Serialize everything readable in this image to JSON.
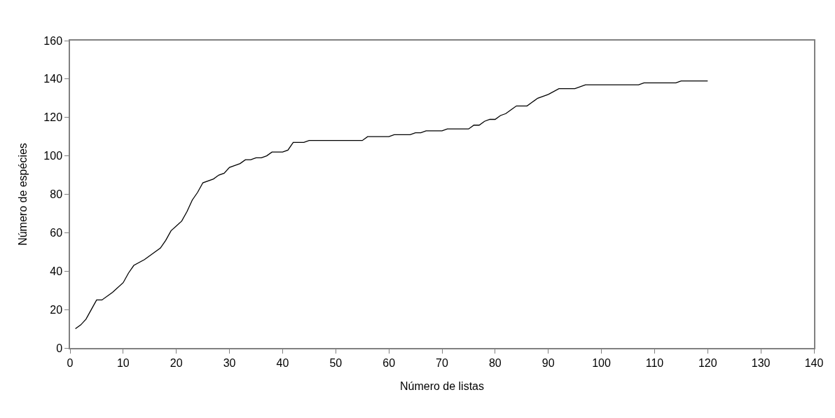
{
  "chart_data": {
    "type": "line",
    "xlabel": "Número de listas",
    "ylabel": "Número de espécies",
    "x": [
      1,
      2,
      3,
      4,
      5,
      6,
      8,
      10,
      11,
      12,
      14,
      16,
      17,
      18,
      19,
      21,
      22,
      23,
      24,
      25,
      27,
      28,
      29,
      30,
      31,
      32,
      33,
      34,
      35,
      36,
      37,
      38,
      40,
      41,
      42,
      44,
      45,
      55,
      56,
      60,
      61,
      64,
      65,
      66,
      67,
      70,
      71,
      75,
      76,
      77,
      78,
      79,
      80,
      81,
      82,
      83,
      84,
      86,
      87,
      88,
      89,
      90,
      92,
      95,
      97,
      107,
      108,
      114,
      115,
      120
    ],
    "series": [
      {
        "color": "#000000",
        "values": [
          10,
          12,
          15,
          20,
          25,
          25,
          29,
          34,
          39,
          43,
          46,
          50,
          52,
          56,
          61,
          66,
          71,
          77,
          81,
          86,
          88,
          90,
          91,
          94,
          95,
          96,
          98,
          98,
          99,
          99,
          100,
          102,
          102,
          103,
          107,
          107,
          108,
          108,
          110,
          110,
          111,
          111,
          112,
          112,
          113,
          113,
          114,
          114,
          116,
          116,
          118,
          119,
          119,
          121,
          122,
          124,
          126,
          126,
          128,
          130,
          131,
          132,
          135,
          135,
          137,
          137,
          138,
          138,
          139,
          139
        ]
      }
    ],
    "xlim": [
      0,
      140
    ],
    "xticks": [
      0,
      10,
      20,
      30,
      40,
      50,
      60,
      70,
      80,
      90,
      100,
      110,
      120,
      130,
      140
    ],
    "ylim": [
      0,
      160
    ],
    "yticks": [
      0,
      20,
      40,
      60,
      80,
      100,
      120,
      140,
      160
    ],
    "grid": false,
    "marker": "none",
    "line_style": "solid"
  }
}
